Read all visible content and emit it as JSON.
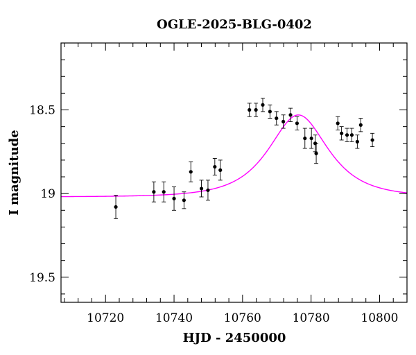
{
  "chart_data": {
    "type": "scatter",
    "title": "OGLE-2025-BLG-0402",
    "xlabel": "HJD - 2450000",
    "ylabel": "I magnitude",
    "xlim": [
      10707,
      10808
    ],
    "ylim": [
      19.65,
      18.1
    ],
    "y_inverted": true,
    "grid": false,
    "x_ticks": [
      10720,
      10740,
      10760,
      10780,
      10800
    ],
    "x_tick_labels": [
      "10720",
      "10740",
      "10760",
      "10780",
      "10800"
    ],
    "y_ticks": [
      18.5,
      19,
      19.5
    ],
    "y_tick_labels": [
      "18.5",
      "19",
      "19.5"
    ],
    "colors": {
      "model": "#ff00ff",
      "points": "#000000",
      "frame": "#000000"
    },
    "series": [
      {
        "kind": "points_with_errorbars",
        "x": [
          10723.0,
          10734.1,
          10737.0,
          10740.0,
          10742.9,
          10744.9,
          10748.0,
          10749.9,
          10751.9,
          10753.5,
          10762.0,
          10763.9,
          10765.9,
          10768.0,
          10769.9,
          10771.9,
          10774.0,
          10775.9,
          10778.2,
          10780.1,
          10781.2,
          10781.5,
          10787.8,
          10788.9,
          10790.5,
          10791.9,
          10793.5,
          10794.5,
          10797.9
        ],
        "y": [
          19.08,
          18.99,
          18.99,
          19.03,
          19.04,
          18.87,
          18.97,
          18.98,
          18.84,
          18.86,
          18.5,
          18.5,
          18.47,
          18.51,
          18.55,
          18.57,
          18.53,
          18.58,
          18.67,
          18.67,
          18.7,
          18.76,
          18.58,
          18.64,
          18.65,
          18.65,
          18.69,
          18.59,
          18.68
        ],
        "err": [
          0.07,
          0.06,
          0.06,
          0.07,
          0.05,
          0.06,
          0.05,
          0.06,
          0.05,
          0.06,
          0.04,
          0.04,
          0.04,
          0.04,
          0.04,
          0.04,
          0.04,
          0.04,
          0.06,
          0.06,
          0.05,
          0.06,
          0.04,
          0.04,
          0.04,
          0.04,
          0.04,
          0.04,
          0.04
        ]
      },
      {
        "kind": "model_curve",
        "baseline_mag": 19.02,
        "peak_mag": 18.53,
        "t0": 10776.3,
        "tE": 12.0
      }
    ]
  }
}
